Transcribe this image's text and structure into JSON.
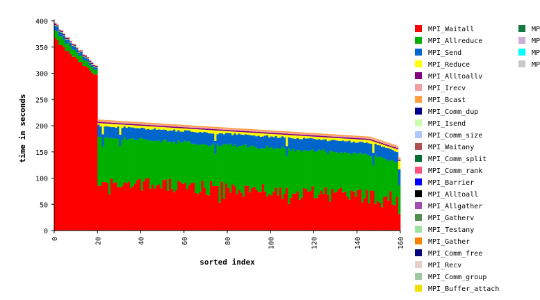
{
  "chart_data": {
    "type": "bar",
    "stacked": true,
    "xlabel": "sorted index",
    "ylabel": "time in seconds",
    "xlim": [
      0,
      160
    ],
    "ylim": [
      0,
      400
    ],
    "x_ticks": [
      0,
      20,
      40,
      60,
      80,
      100,
      120,
      140,
      160
    ],
    "y_ticks": [
      0,
      50,
      100,
      150,
      200,
      250,
      300,
      350,
      400
    ],
    "n_bars": 160,
    "legend_position": "right",
    "legend_col1": [
      {
        "name": "MPI_Waitall",
        "color": "#ff0000"
      },
      {
        "name": "MPI_Allreduce",
        "color": "#00b000"
      },
      {
        "name": "MPI_Send",
        "color": "#0066cc"
      },
      {
        "name": "MPI_Reduce",
        "color": "#ffff00"
      },
      {
        "name": "MPI_Alltoallv",
        "color": "#800080"
      },
      {
        "name": "MPI_Irecv",
        "color": "#f4a0a0"
      },
      {
        "name": "MPI_Bcast",
        "color": "#ffa040"
      },
      {
        "name": "MPI_Comm_dup",
        "color": "#000090"
      },
      {
        "name": "MPI_Isend",
        "color": "#c8ffb0"
      },
      {
        "name": "MPI_Comm_size",
        "color": "#b0c8ff"
      },
      {
        "name": "MPI_Waitany",
        "color": "#b05050"
      },
      {
        "name": "MPI_Comm_split",
        "color": "#007030"
      },
      {
        "name": "MPI_Comm_rank",
        "color": "#ff5080"
      },
      {
        "name": "MPI_Barrier",
        "color": "#0000ff"
      },
      {
        "name": "MPI_Alltoall",
        "color": "#000000"
      },
      {
        "name": "MPI_Allgather",
        "color": "#a050b0"
      },
      {
        "name": "MPI_Gatherv",
        "color": "#509050"
      },
      {
        "name": "MPI_Testany",
        "color": "#a0e0a0"
      },
      {
        "name": "MPI_Gather",
        "color": "#ff8000"
      },
      {
        "name": "MPI_Comm_free",
        "color": "#000080"
      },
      {
        "name": "MPI_Recv",
        "color": "#e8d0c8"
      },
      {
        "name": "MPI_Comm_group",
        "color": "#a0c8a0"
      },
      {
        "name": "MPI_Buffer_attach",
        "color": "#f0e000"
      }
    ],
    "legend_col2": [
      {
        "name": "MP",
        "color": "#107840"
      },
      {
        "name": "MP",
        "color": "#c8b0d8"
      },
      {
        "name": "MP",
        "color": "#00ffff"
      },
      {
        "name": "MP",
        "color": "#c8c8c8"
      }
    ],
    "series_colors": {
      "MPI_Waitall": "#ff0000",
      "MPI_Allreduce": "#00b000",
      "MPI_Send": "#0066cc",
      "MPI_Reduce": "#ffff00",
      "MPI_Alltoallv": "#800080",
      "MPI_Irecv": "#f4a0a0",
      "MPI_Bcast": "#ffa040"
    },
    "segments_approx": {
      "idx_0_19": {
        "MPI_Waitall": [
          365,
          295
        ],
        "MPI_Allreduce": [
          15,
          8
        ],
        "MPI_Send": [
          8,
          4
        ],
        "MPI_Alltoallv": 2,
        "MPI_Reduce": 1
      },
      "idx_20_159": {
        "MPI_Waitall": [
          95,
          55
        ],
        "MPI_Allreduce": [
          78,
          40
        ],
        "MPI_Send": [
          25,
          20
        ],
        "MPI_Reduce": [
          5,
          3
        ],
        "MPI_Alltoallv": 2,
        "MPI_Irecv": 2,
        "MPI_Bcast": 2
      }
    },
    "totals_approx": {
      "first": 395,
      "index_19": 312,
      "index_20": 212,
      "index_100": 178,
      "last": 140
    }
  }
}
